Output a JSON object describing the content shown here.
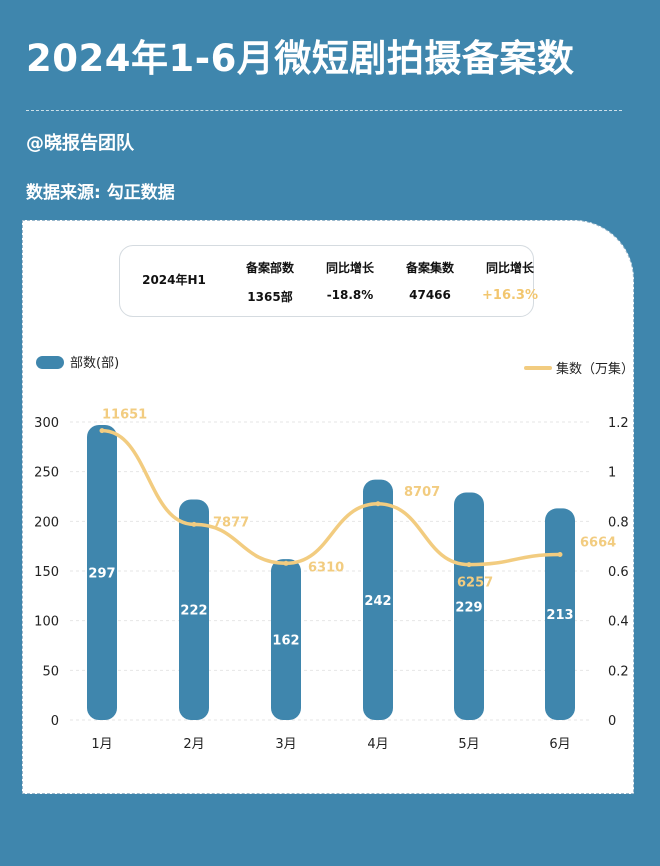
{
  "title": "2024年1-6月微短剧拍摄备案数",
  "author": "@晓报告团队",
  "source": "数据来源: 勾正数据",
  "summary": {
    "period": "2024年H1",
    "headers": [
      "备案部数",
      "同比增长",
      "备案集数",
      "同比增长"
    ],
    "values": [
      "1365部",
      "-18.8%",
      "47466",
      "+16.3%"
    ]
  },
  "colors": {
    "background": "#3f86ad",
    "bar": "#3f86ad",
    "line": "#f2cc80",
    "positive": "#f2c66e"
  },
  "chart_data": {
    "type": "bar",
    "categories": [
      "1月",
      "2月",
      "3月",
      "4月",
      "5月",
      "6月"
    ],
    "series": [
      {
        "name": "部数(部)",
        "type": "bar",
        "axis": "left",
        "values": [
          297,
          222,
          162,
          242,
          229,
          213
        ]
      },
      {
        "name": "集数（万集）",
        "type": "line",
        "axis": "right",
        "values": [
          1.1651,
          0.7877,
          0.631,
          0.8707,
          0.6257,
          0.6664
        ],
        "labels": [
          "11651",
          "7877",
          "6310",
          "8707",
          "6257",
          "6664"
        ]
      }
    ],
    "left_axis": {
      "ylim": [
        0,
        300
      ],
      "ticks": [
        "0",
        "50",
        "100",
        "150",
        "200",
        "250",
        "300"
      ]
    },
    "right_axis": {
      "ylim": [
        0,
        1.2
      ],
      "ticks": [
        "0",
        "0.2",
        "0.4",
        "0.6",
        "0.8",
        "1",
        "1.2"
      ]
    },
    "legend_placement": "top"
  }
}
